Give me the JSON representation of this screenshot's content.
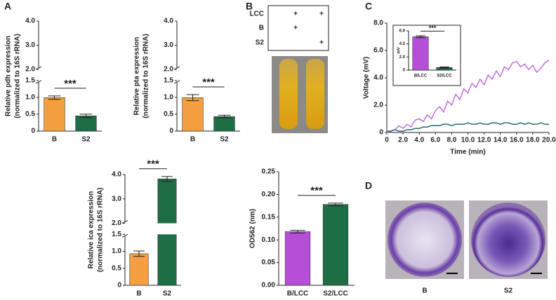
{
  "panel_labels": [
    "A",
    "B",
    "C",
    "D"
  ],
  "condition_table": {
    "rows": [
      [
        "LCC",
        "+",
        "+"
      ],
      [
        "B",
        "+",
        null
      ],
      [
        "S2",
        null,
        "+"
      ]
    ]
  },
  "photo_labels": [
    "B",
    "S2"
  ],
  "chart_data": [
    {
      "type": "bar",
      "ylabel": [
        "Relative pdh expression",
        "(normalized to 16S rRNA)"
      ],
      "categories": [
        "B",
        "S2"
      ],
      "values": [
        0.99,
        0.45
      ],
      "errors": [
        0.05,
        0.05
      ],
      "colors": [
        "#f5a040",
        "#1d6e45"
      ],
      "ylim": [
        0,
        4.0
      ],
      "ybreak": [
        1.5,
        2.0
      ],
      "yticks": [
        0,
        0.5,
        {
          "value": 1.0,
          "label": "1.0"
        },
        1.5,
        {
          "value": 2.0,
          "label": "2.0"
        },
        {
          "value": 3.0,
          "label": "3.0"
        },
        {
          "value": 4.0,
          "label": "4.0"
        }
      ],
      "significance": "***"
    },
    {
      "type": "bar",
      "ylabel": [
        "Relative pta expression",
        "(normalized to 16S rRNA)"
      ],
      "categories": [
        "B",
        "S2"
      ],
      "values": [
        0.99,
        0.43
      ],
      "errors": [
        0.09,
        0.04
      ],
      "colors": [
        "#f5a040",
        "#1d6e45"
      ],
      "ylim": [
        0,
        4.0
      ],
      "ybreak": [
        1.5,
        2.0
      ],
      "yticks": [
        0,
        0.5,
        {
          "value": 1.0,
          "label": "1.0"
        },
        1.5,
        {
          "value": 2.0,
          "label": "2.0"
        },
        {
          "value": 3.0,
          "label": "3.0"
        },
        {
          "value": 4.0,
          "label": "4.0"
        }
      ],
      "significance": "***"
    },
    {
      "type": "bar",
      "ylabel": [
        "Relative ica expression",
        "(normalized to 16S rRNA)"
      ],
      "categories": [
        "B",
        "S2"
      ],
      "values": [
        0.93,
        3.82
      ],
      "errors": [
        0.08,
        0.1
      ],
      "colors": [
        "#f5a040",
        "#1d6e45"
      ],
      "ylim": [
        0,
        4.0
      ],
      "ybreak": [
        1.5,
        2.0
      ],
      "yticks": [
        0,
        0.5,
        {
          "value": 1.0,
          "label": "1.0"
        },
        1.5,
        {
          "value": 2.0,
          "label": "2.0"
        },
        {
          "value": 3.0,
          "label": "3.0"
        },
        {
          "value": 4.0,
          "label": "4.0"
        }
      ],
      "significance": "***"
    },
    {
      "type": "bar",
      "ylabel": [
        "OD562 (nm)"
      ],
      "categories": [
        "B/LCC",
        "S2/LCC"
      ],
      "values": [
        0.118,
        0.178
      ],
      "errors": [
        0.003,
        0.003
      ],
      "colors": [
        "#b64fd8",
        "#1d6e45"
      ],
      "ylim": [
        0,
        0.25
      ],
      "yticks": [
        {
          "value": 0,
          "label": "0.00"
        },
        {
          "value": 0.05,
          "label": "0.05"
        },
        {
          "value": 0.1,
          "label": "0.10"
        },
        {
          "value": 0.15,
          "label": "0.15"
        },
        {
          "value": 0.2,
          "label": "0.20"
        },
        {
          "value": 0.25,
          "label": "0.25"
        }
      ],
      "significance": "***"
    },
    {
      "type": "line",
      "ylabel": [
        "Voltage (mV)"
      ],
      "xlabel": "Time (min)",
      "x": [
        0,
        0.5,
        1,
        1.5,
        2,
        2.5,
        3,
        3.5,
        4,
        4.5,
        5,
        5.5,
        6,
        6.5,
        7,
        7.5,
        8,
        8.5,
        9,
        9.5,
        10,
        10.5,
        11,
        11.5,
        12,
        12.5,
        13,
        13.5,
        14,
        14.5,
        15,
        15.5,
        16,
        16.5,
        17,
        17.5,
        18,
        18.5,
        19,
        19.5,
        20
      ],
      "series": [
        {
          "color": "#c26ee0",
          "values": [
            0,
            0.1,
            0.2,
            0.5,
            0.3,
            0.6,
            0.4,
            0.9,
            1.0,
            0.8,
            1.3,
            1.0,
            1.6,
            1.9,
            1.5,
            2.3,
            2.0,
            2.8,
            2.4,
            3.2,
            2.9,
            3.6,
            3.3,
            3.9,
            3.5,
            4.2,
            3.9,
            4.5,
            4.1,
            4.8,
            4.6,
            5.1,
            5.2,
            4.8,
            5.0,
            4.6,
            4.9,
            4.4,
            4.7,
            5.1,
            5.3
          ]
        },
        {
          "color": "#2a6b6b",
          "values": [
            0.1,
            0.1,
            0.2,
            0.1,
            0.1,
            0.2,
            0.2,
            0.3,
            0.3,
            0.4,
            0.4,
            0.5,
            0.5,
            0.5,
            0.6,
            0.6,
            0.5,
            0.6,
            0.6,
            0.6,
            0.7,
            0.6,
            0.6,
            0.7,
            0.6,
            0.6,
            0.7,
            0.7,
            0.6,
            0.7,
            0.7,
            0.6,
            0.6,
            0.7,
            0.6,
            0.7,
            0.6,
            0.6,
            0.7,
            0.6,
            0.6
          ]
        }
      ],
      "xlim": [
        0,
        20
      ],
      "ylim": [
        0,
        8.0
      ],
      "xticks": [
        0,
        {
          "value": 2,
          "label": "2.0"
        },
        {
          "value": 4,
          "label": "4.0"
        },
        {
          "value": 6,
          "label": "6.0"
        },
        {
          "value": 8,
          "label": "8.0"
        },
        {
          "value": 10,
          "label": "10.0"
        },
        {
          "value": 12,
          "label": "12.0"
        },
        {
          "value": 14,
          "label": "14.0"
        },
        {
          "value": 16,
          "label": "16.0"
        },
        {
          "value": 18,
          "label": "18.0"
        },
        {
          "value": 20,
          "label": "20.0"
        }
      ],
      "yticks": [
        0,
        {
          "value": 2,
          "label": "2.0"
        },
        {
          "value": 4,
          "label": "4.0"
        },
        {
          "value": 6,
          "label": "6.0"
        },
        {
          "value": 8,
          "label": "8.0"
        }
      ]
    },
    {
      "type": "bar",
      "ylabel": [
        "mV"
      ],
      "categories": [
        "B/LCC",
        "S2/LCC"
      ],
      "values": [
        5.1,
        0.4
      ],
      "errors": [
        0.15,
        0.08
      ],
      "colors": [
        "#b64fd8",
        "#1d6e45"
      ],
      "ylim": [
        0,
        6.0
      ],
      "yticks": [
        0,
        {
          "value": 2,
          "label": "2.0"
        },
        {
          "value": 4,
          "label": "4.0"
        },
        {
          "value": 6,
          "label": "6.0"
        }
      ],
      "significance": "***"
    }
  ]
}
